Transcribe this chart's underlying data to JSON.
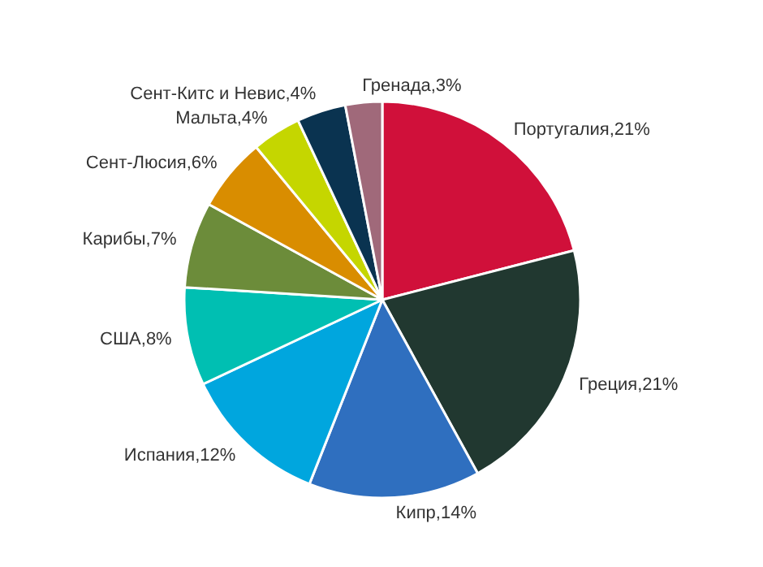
{
  "chart_data": {
    "type": "pie",
    "categories": [
      "Португалия",
      "Греция",
      "Кипр",
      "Испания",
      "США",
      "Карибы",
      "Сент-Люсия",
      "Мальта",
      "Сент-Китс и Невис",
      "Гренада"
    ],
    "values": [
      21,
      21,
      14,
      12,
      8,
      7,
      6,
      4,
      4,
      3
    ],
    "colors": [
      "#d0103a",
      "#213830",
      "#2f6fbf",
      "#00a6de",
      "#00bfb2",
      "#6c8c3a",
      "#d98d00",
      "#c5d600",
      "#0a3350",
      "#a0697a"
    ],
    "value_labels": [
      "21%",
      "21%",
      "14%",
      "12%",
      "8%",
      "7%",
      "6%",
      "4%",
      "4%",
      "3%"
    ]
  }
}
